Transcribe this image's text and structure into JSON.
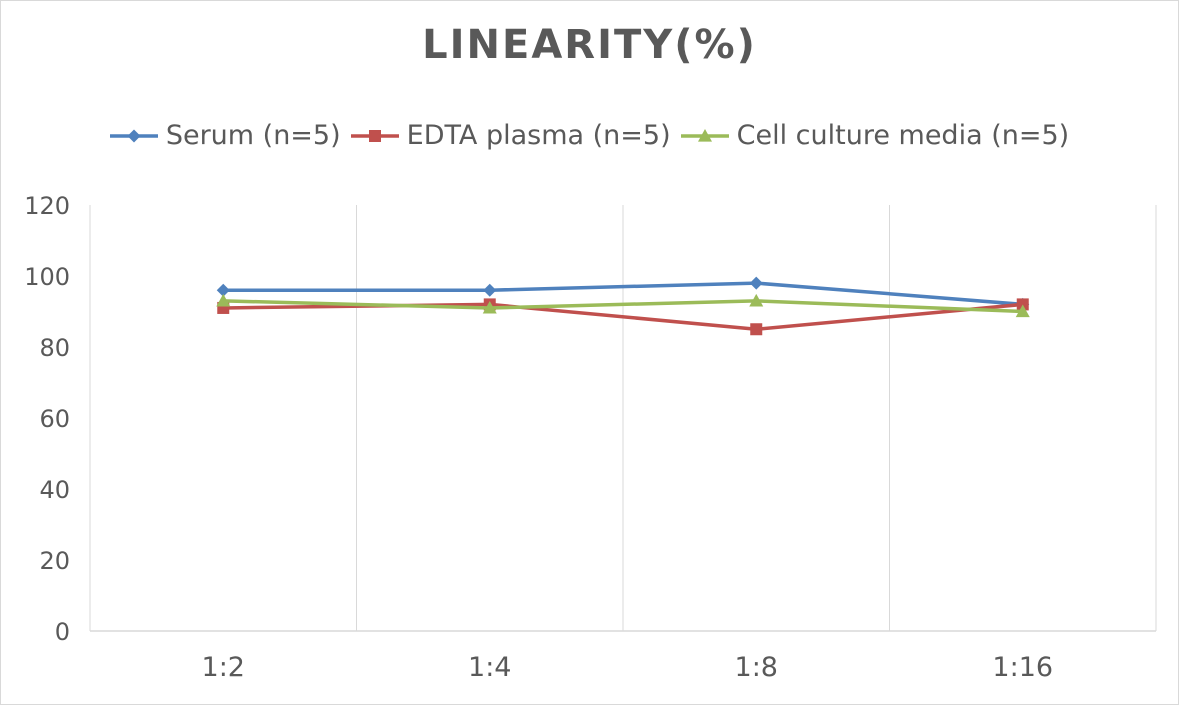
{
  "chart_data": {
    "type": "line",
    "title": "LINEARITY(%)",
    "categories": [
      "1:2",
      "1:4",
      "1:8",
      "1:16"
    ],
    "ylim": [
      0,
      120
    ],
    "yticks": [
      0,
      20,
      40,
      60,
      80,
      100,
      120
    ],
    "grid": "vertical",
    "legend_position": "top",
    "series": [
      {
        "name": "Serum (n=5)",
        "values": [
          96,
          96,
          98,
          92
        ],
        "color": "#4f81bd",
        "marker": "diamond"
      },
      {
        "name": "EDTA plasma (n=5)",
        "values": [
          91,
          92,
          85,
          92
        ],
        "color": "#c0504d",
        "marker": "square"
      },
      {
        "name": "Cell culture media (n=5)",
        "values": [
          93,
          91,
          93,
          90
        ],
        "color": "#9bbb59",
        "marker": "triangle"
      }
    ]
  }
}
